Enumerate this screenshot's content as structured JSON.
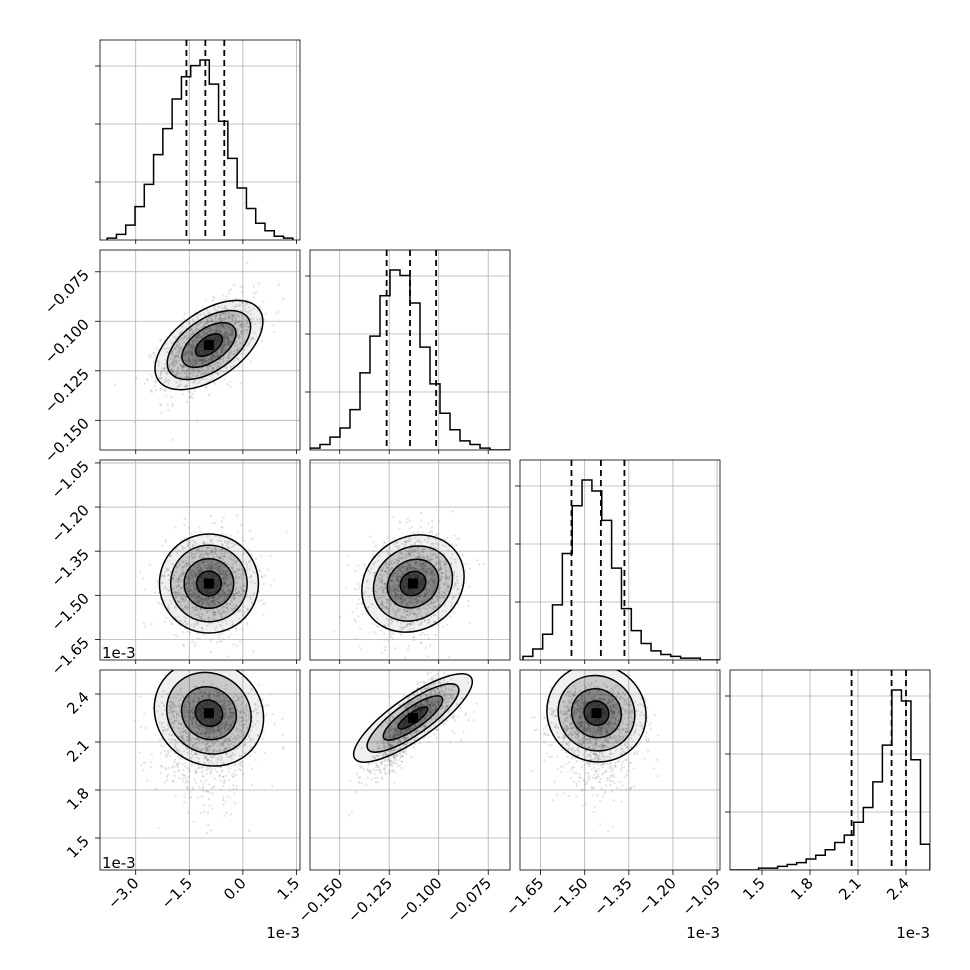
{
  "chart_data": {
    "type": "corner",
    "parameters": [
      {
        "id": "p0",
        "axis_offset": "1e-3",
        "lim": [
          -4.0,
          1.6
        ],
        "median": -1.05,
        "q16": -1.58,
        "q84": -0.52,
        "ticks": [
          -3.0,
          -1.5,
          0.0,
          1.5
        ],
        "tick_labels": [
          "−3.0",
          "−1.5",
          "0.0",
          "1.5"
        ]
      },
      {
        "id": "p1",
        "axis_offset": "",
        "lim": [
          -0.165,
          -0.064
        ],
        "median": -0.1145,
        "q16": -0.1263,
        "q84": -0.1013,
        "ticks": [
          -0.15,
          -0.125,
          -0.1,
          -0.075
        ],
        "tick_labels": [
          "−0.150",
          "−0.125",
          "−0.100",
          "−0.075"
        ]
      },
      {
        "id": "p2",
        "axis_offset": "1e-3",
        "lim": [
          -1.72,
          -1.04
        ],
        "median": -1.445,
        "q16": -1.545,
        "q84": -1.365,
        "ticks": [
          -1.65,
          -1.5,
          -1.35,
          -1.2,
          -1.05
        ],
        "tick_labels": [
          "−1.65",
          "−1.50",
          "−1.35",
          "−1.20",
          "−1.05"
        ]
      },
      {
        "id": "p3",
        "axis_offset": "1e-3",
        "lim": [
          1.3,
          2.55
        ],
        "median": 2.31,
        "q16": 2.06,
        "q84": 2.4,
        "ticks": [
          1.5,
          1.8,
          2.1,
          2.4
        ],
        "tick_labels": [
          "1.5",
          "1.8",
          "2.1",
          "2.4"
        ]
      }
    ],
    "histograms": [
      {
        "param": "p0",
        "edges": [
          -3.8,
          1.4
        ],
        "counts": [
          1,
          3,
          8,
          18,
          30,
          46,
          60,
          76,
          88,
          94,
          97,
          84,
          64,
          44,
          28,
          17,
          9,
          5,
          2,
          1
        ]
      },
      {
        "param": "p1",
        "edges": [
          -0.165,
          -0.064
        ],
        "counts": [
          1,
          3,
          7,
          12,
          22,
          42,
          62,
          84,
          98,
          95,
          80,
          56,
          36,
          20,
          11,
          5,
          3,
          1,
          0,
          0
        ]
      },
      {
        "param": "p2",
        "edges": [
          -1.71,
          -1.04
        ],
        "counts": [
          2,
          6,
          14,
          30,
          58,
          84,
          98,
          92,
          76,
          50,
          28,
          16,
          9,
          5,
          3,
          2,
          1,
          1,
          0,
          0
        ]
      },
      {
        "param": "p3",
        "edges": [
          1.3,
          2.55
        ],
        "counts": [
          0,
          0,
          0,
          1,
          1,
          2,
          3,
          4,
          6,
          8,
          11,
          15,
          19,
          26,
          34,
          48,
          68,
          98,
          92,
          60,
          14
        ]
      }
    ],
    "pair_panels": [
      {
        "x": "p0",
        "y": "p1",
        "mean": [
          -0.95,
          -0.112
        ],
        "sd": [
          0.65,
          0.011
        ],
        "corr": 0.55
      },
      {
        "x": "p0",
        "y": "p2",
        "mean": [
          -0.95,
          -1.46
        ],
        "sd": [
          0.6,
          0.08
        ],
        "corr": 0.0
      },
      {
        "x": "p1",
        "y": "p2",
        "mean": [
          -0.113,
          -1.46
        ],
        "sd": [
          0.011,
          0.08
        ],
        "corr": 0.15
      },
      {
        "x": "p0",
        "y": "p3",
        "mean": [
          -0.95,
          2.28
        ],
        "sd": [
          0.65,
          0.16
        ],
        "corr": -0.1
      },
      {
        "x": "p1",
        "y": "p3",
        "mean": [
          -0.113,
          2.25
        ],
        "sd": [
          0.01,
          0.17
        ],
        "corr": 0.88
      },
      {
        "x": "p2",
        "y": "p3",
        "mean": [
          -1.46,
          2.28
        ],
        "sd": [
          0.07,
          0.15
        ],
        "corr": -0.05
      }
    ],
    "contour_levels": [
      0.118,
      0.393,
      0.675,
      0.865
    ],
    "grid": true
  },
  "colors": {
    "line": "#000000",
    "grid": "#b0b0b0",
    "point": "#7a7a7a"
  }
}
